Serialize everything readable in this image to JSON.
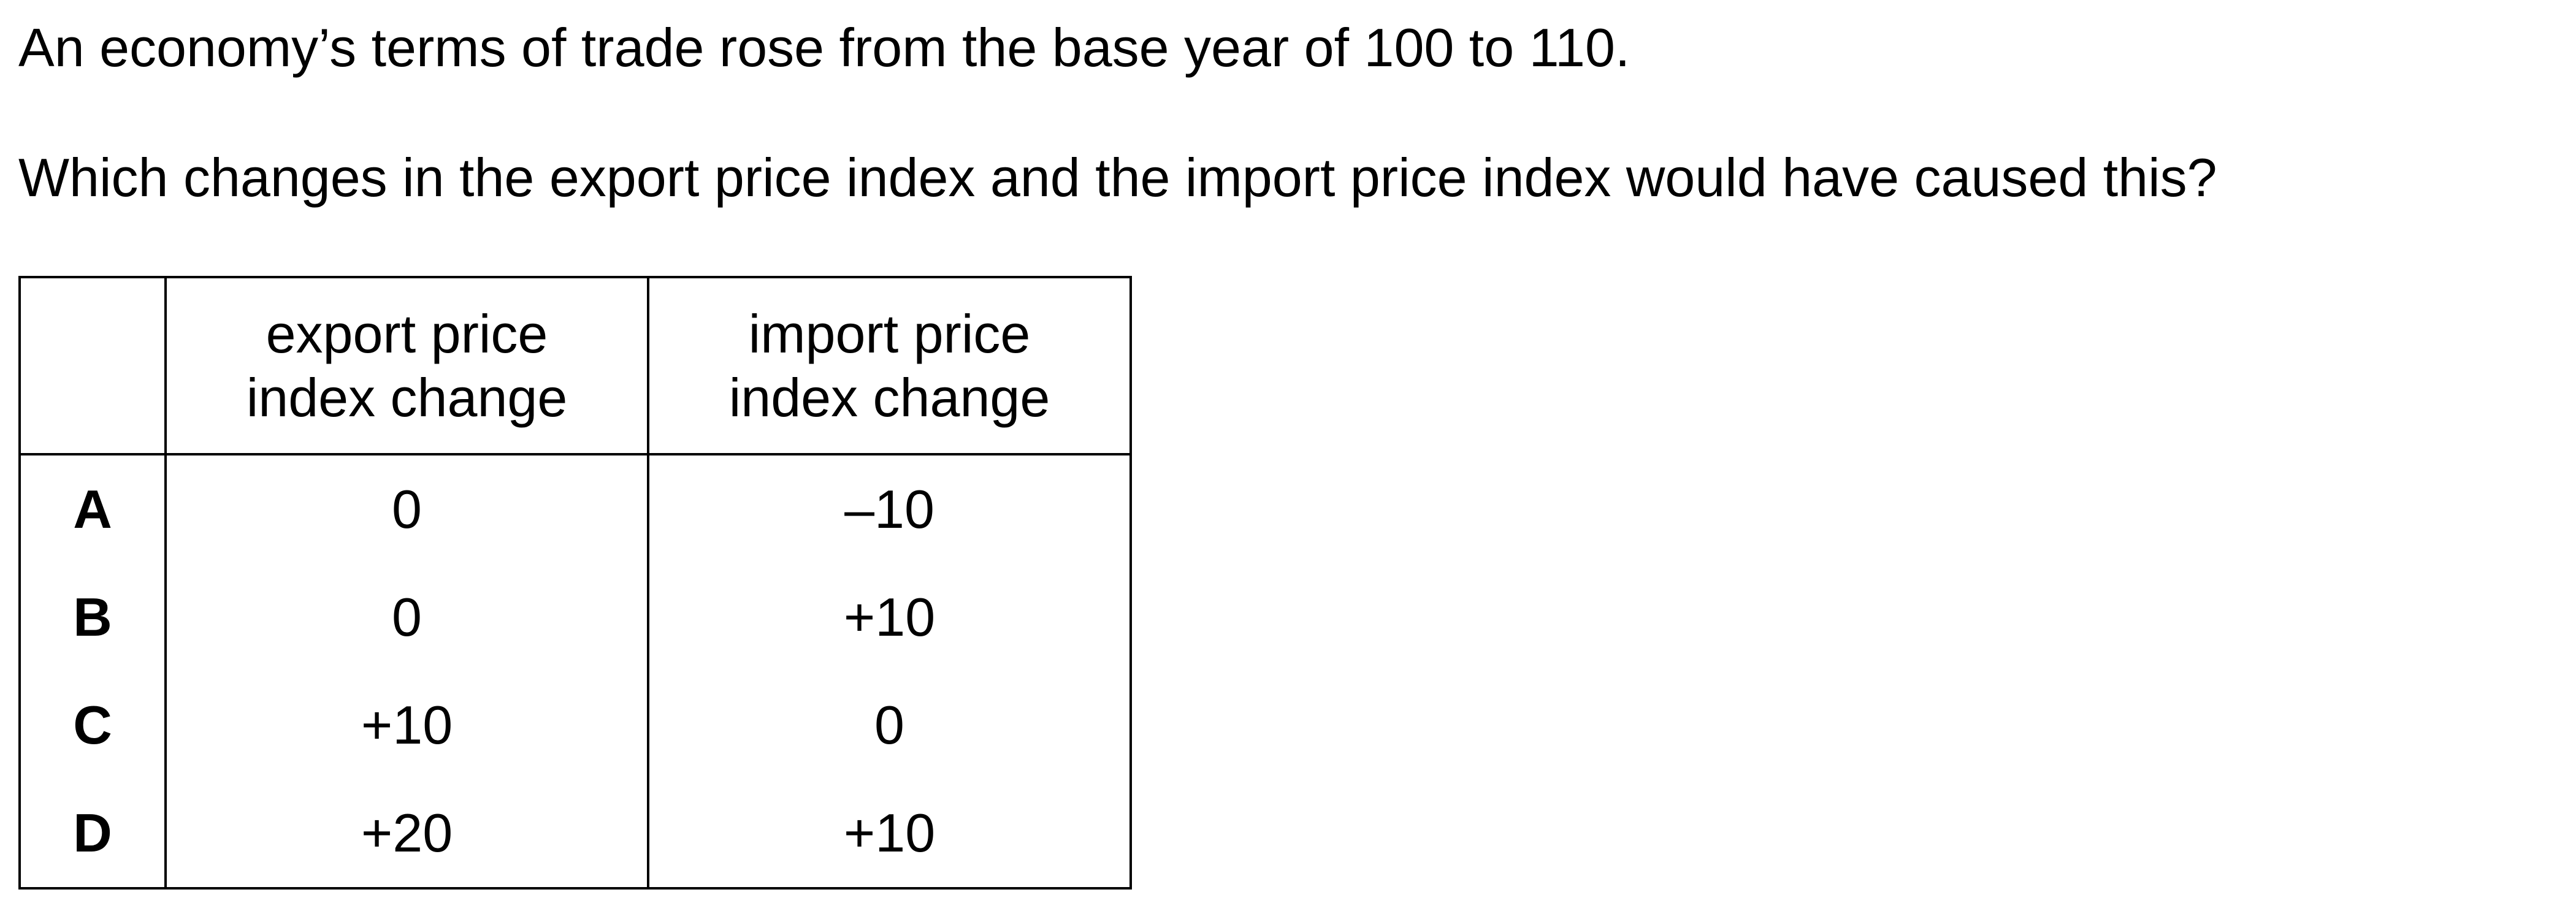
{
  "question": {
    "line1": "An economy’s terms of trade rose from the base year of 100 to 110.",
    "line2": "Which changes in the export price index and the import price index would have caused this?"
  },
  "table": {
    "headers": {
      "letter": "",
      "export_line1": "export price",
      "export_line2": "index change",
      "import_line1": "import price",
      "import_line2": "index change"
    },
    "rows": [
      {
        "letter": "A",
        "export": "0",
        "import": "–10"
      },
      {
        "letter": "B",
        "export": "0",
        "import": "+10"
      },
      {
        "letter": "C",
        "export": "+10",
        "import": "0"
      },
      {
        "letter": "D",
        "export": "+20",
        "import": "+10"
      }
    ]
  }
}
